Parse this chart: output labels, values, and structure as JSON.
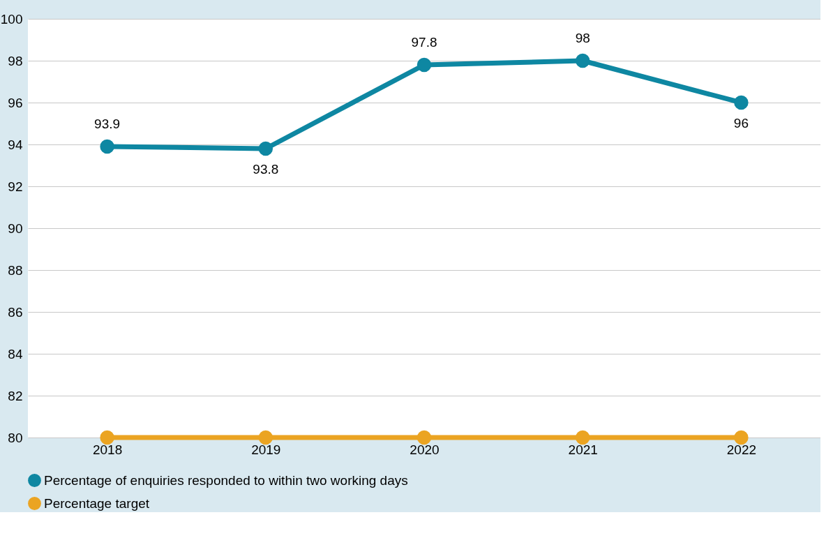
{
  "chart_data": {
    "type": "line",
    "categories": [
      "2018",
      "2019",
      "2020",
      "2021",
      "2022"
    ],
    "series": [
      {
        "name": "Percentage of enquiries responded to within two working days",
        "color": "#0e87a2",
        "values": [
          93.9,
          93.8,
          97.8,
          98,
          96
        ],
        "value_labels": [
          "93.9",
          "93.8",
          "97.8",
          "98",
          "96"
        ]
      },
      {
        "name": "Percentage target",
        "color": "#eba422",
        "values": [
          80,
          80,
          80,
          80,
          80
        ]
      }
    ],
    "ylim": [
      80,
      100
    ],
    "yticks": [
      80,
      82,
      84,
      86,
      88,
      90,
      92,
      94,
      96,
      98,
      100
    ],
    "grid": "y",
    "legend": "bottom",
    "marker": "circle",
    "line_style": "solid"
  }
}
